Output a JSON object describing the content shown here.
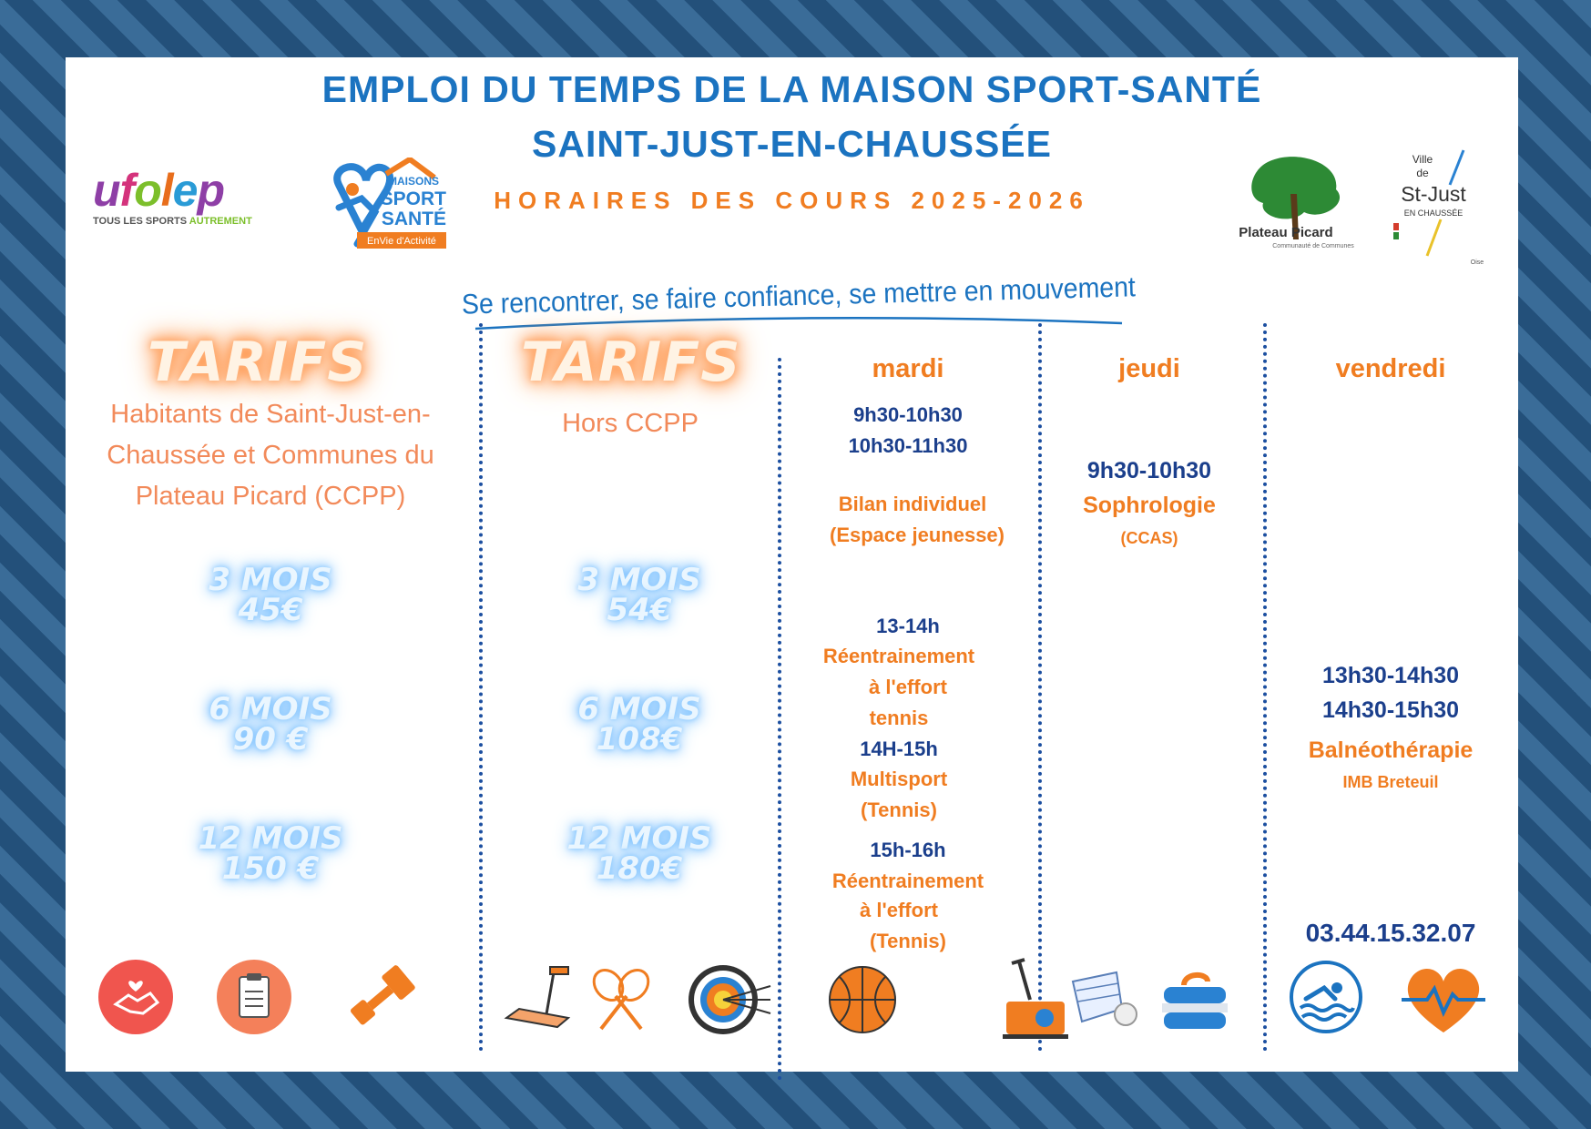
{
  "header": {
    "title_line1": "EMPLOI DU TEMPS DE LA MAISON SPORT-SANTÉ",
    "title_line2": "SAINT-JUST-EN-CHAUSSÉE",
    "subtitle": "HORAIRES DES COURS 2025-2026",
    "slogan": "Se rencontrer, se faire confiance, se mettre en mouvement"
  },
  "logos": {
    "ufolep": {
      "name": "ufolep",
      "tagline_a": "TOUS LES SPORTS",
      "tagline_b": "AUTREMENT"
    },
    "maisons": {
      "line1": "MAISONS",
      "line2": "SPORT",
      "line3": "SANTÉ",
      "banner": "EnVie d'Activité"
    },
    "plateau": {
      "name": "Plateau Picard",
      "tag": "Communauté de Communes"
    },
    "stjust": {
      "ville": "Ville",
      "de": "de",
      "name": "St-Just",
      "sub": "EN CHAUSSÉE",
      "dept": "Oise"
    }
  },
  "tarifs": [
    {
      "heading": "TARIFS",
      "description": [
        "Habitants de Saint-Just-en-",
        "Chaussée et  Communes du",
        "Plateau Picard (CCPP)"
      ],
      "prices": [
        {
          "duration": "3 MOIS",
          "amount": "45€"
        },
        {
          "duration": "6 MOIS",
          "amount": "90 €"
        },
        {
          "duration": "12 MOIS",
          "amount": "150 €"
        }
      ]
    },
    {
      "heading": "TARIFS",
      "description": [
        "Hors CCPP"
      ],
      "prices": [
        {
          "duration": "3 MOIS",
          "amount": "54€"
        },
        {
          "duration": "6 MOIS",
          "amount": "108€"
        },
        {
          "duration": "12 MOIS",
          "amount": "180€"
        }
      ]
    }
  ],
  "schedule": {
    "mardi": {
      "day": "mardi",
      "block1": {
        "time1": "9h30-10h30",
        "time2": "10h30-11h30",
        "activity": "Bilan individuel",
        "place": "(Espace jeunesse)"
      },
      "block2": {
        "time": "13-14h",
        "line1": "Réentrainement",
        "line2": "à l'effort",
        "line3": "tennis"
      },
      "block3": {
        "time": "14H-15h",
        "line1": "Multisport",
        "line2": "(Tennis)"
      },
      "block4": {
        "time": "15h-16h",
        "line1": "Réentrainement",
        "line2": "à l'effort",
        "line3": "(Tennis)"
      }
    },
    "jeudi": {
      "day": "jeudi",
      "block1": {
        "time": "9h30-10h30",
        "activity": "Sophrologie",
        "place": "(CCAS)"
      }
    },
    "vendredi": {
      "day": "vendredi",
      "block1": {
        "time1": "13h30-14h30",
        "time2": "14h30-15h30",
        "activity": "Balnéothérapie",
        "place": "IMB Breteuil"
      },
      "phone": "03.44.15.32.07"
    }
  },
  "icons": [
    "handshake-heart-icon",
    "clipboard-icon",
    "dumbbell-icon",
    "treadmill-icon",
    "tennis-rackets-icon",
    "archery-target-icon",
    "basketball-icon",
    "exercise-bike-icon",
    "shuttlecock-icon",
    "curling-stone-icon",
    "swimming-icon",
    "heart-pulse-icon"
  ],
  "colors": {
    "blue": "#1b73c0",
    "navy": "#1b3f8c",
    "orange": "#f07d21",
    "background": "#2b5a85"
  }
}
